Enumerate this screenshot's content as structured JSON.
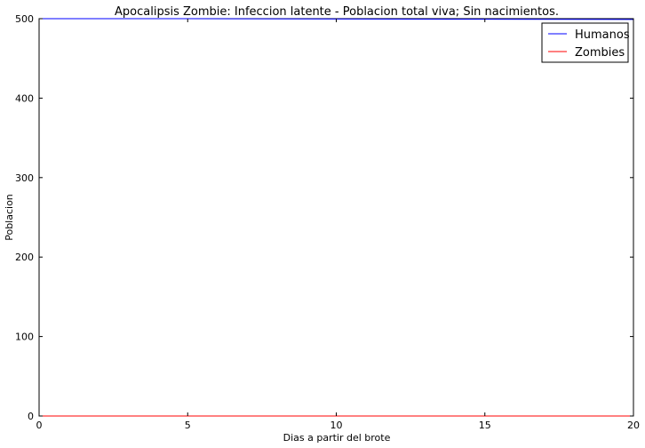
{
  "chart_data": {
    "type": "line",
    "title": "Apocalipsis Zombie: Infeccion latente - Poblacion total viva; Sin nacimientos.",
    "xlabel": "Dias a partir del brote",
    "ylabel": "Poblacion",
    "xlim": [
      0,
      20
    ],
    "ylim": [
      0,
      500
    ],
    "xticks": [
      0,
      5,
      10,
      15,
      20
    ],
    "yticks": [
      0,
      100,
      200,
      300,
      400,
      500
    ],
    "grid": false,
    "legend_position": "top-right",
    "x": [
      0,
      5,
      10,
      15,
      20
    ],
    "series": [
      {
        "name": "Humanos",
        "color": "#0000ff",
        "values": [
          500,
          500,
          499.6,
          499.3,
          499
        ]
      },
      {
        "name": "Zombies",
        "color": "#ff0000",
        "values": [
          0,
          0,
          0,
          0,
          0
        ]
      }
    ]
  }
}
